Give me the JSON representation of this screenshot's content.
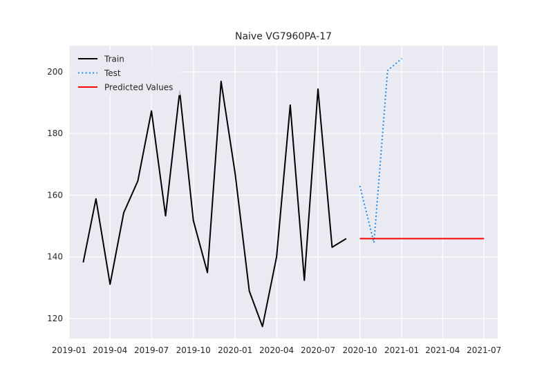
{
  "chart_data": {
    "type": "line",
    "title": "Naive VG7960PA-17",
    "xlabel": "",
    "ylabel": "",
    "x_axis": {
      "type": "date",
      "range": [
        "2019-01-01",
        "2021-07-31"
      ],
      "ticks": [
        {
          "date": "2019-01-01",
          "label": "2019-01"
        },
        {
          "date": "2019-04-01",
          "label": "2019-04"
        },
        {
          "date": "2019-07-01",
          "label": "2019-07"
        },
        {
          "date": "2019-10-01",
          "label": "2019-10"
        },
        {
          "date": "2020-01-01",
          "label": "2020-01"
        },
        {
          "date": "2020-04-01",
          "label": "2020-04"
        },
        {
          "date": "2020-07-01",
          "label": "2020-07"
        },
        {
          "date": "2020-10-01",
          "label": "2020-10"
        },
        {
          "date": "2021-01-01",
          "label": "2021-01"
        },
        {
          "date": "2021-04-01",
          "label": "2021-04"
        },
        {
          "date": "2021-07-01",
          "label": "2021-07"
        }
      ]
    },
    "y_axis": {
      "range": [
        113.5,
        208.5
      ],
      "ticks": [
        120,
        140,
        160,
        180,
        200
      ]
    },
    "grid": true,
    "legend_position": "top-left",
    "series": [
      {
        "name": "Train",
        "color": "#000000",
        "style": "solid",
        "points": [
          {
            "x": "2019-02-01",
            "y": 138.2
          },
          {
            "x": "2019-03-01",
            "y": 158.8
          },
          {
            "x": "2019-04-01",
            "y": 131.1
          },
          {
            "x": "2019-05-01",
            "y": 154.3
          },
          {
            "x": "2019-06-01",
            "y": 164.6
          },
          {
            "x": "2019-07-01",
            "y": 187.3
          },
          {
            "x": "2019-08-01",
            "y": 153.3
          },
          {
            "x": "2019-09-01",
            "y": 193.7
          },
          {
            "x": "2019-10-01",
            "y": 151.8
          },
          {
            "x": "2019-11-01",
            "y": 134.9
          },
          {
            "x": "2019-12-01",
            "y": 196.9
          },
          {
            "x": "2020-01-01",
            "y": 166.9
          },
          {
            "x": "2020-02-01",
            "y": 128.9
          },
          {
            "x": "2020-03-01",
            "y": 117.4
          },
          {
            "x": "2020-04-01",
            "y": 140.0
          },
          {
            "x": "2020-05-01",
            "y": 189.2
          },
          {
            "x": "2020-06-01",
            "y": 132.4
          },
          {
            "x": "2020-07-01",
            "y": 194.4
          },
          {
            "x": "2020-08-01",
            "y": 143.1
          },
          {
            "x": "2020-09-01",
            "y": 145.9
          }
        ]
      },
      {
        "name": "Test",
        "color": "#1e88e5",
        "style": "dotted",
        "points": [
          {
            "x": "2020-10-01",
            "y": 163.0
          },
          {
            "x": "2020-11-01",
            "y": 144.6
          },
          {
            "x": "2020-12-01",
            "y": 200.4
          },
          {
            "x": "2021-01-01",
            "y": 204.3
          }
        ]
      },
      {
        "name": "Predicted Values",
        "color": "#ff0000",
        "style": "solid",
        "points": [
          {
            "x": "2020-10-01",
            "y": 145.9
          },
          {
            "x": "2021-07-01",
            "y": 145.9
          }
        ]
      }
    ]
  }
}
